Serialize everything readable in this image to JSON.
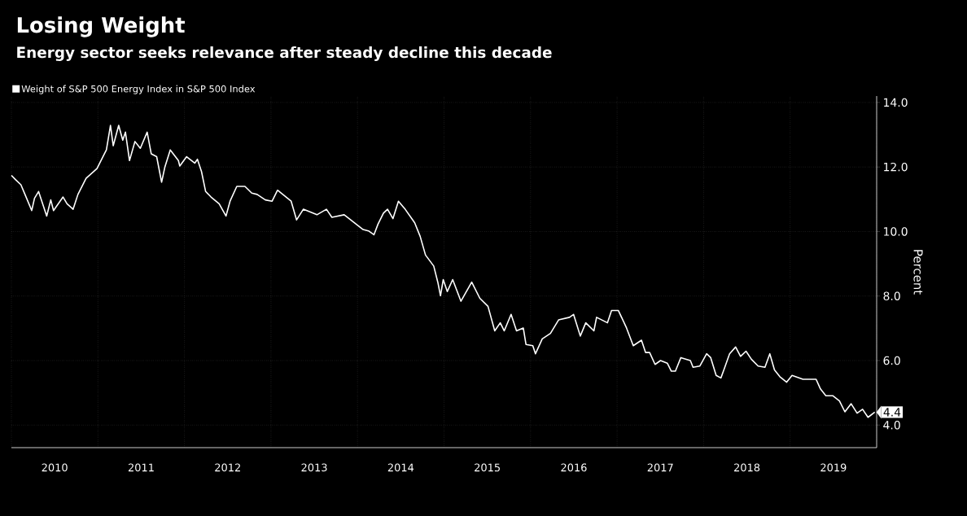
{
  "chart_data": {
    "type": "line",
    "title": "Losing Weight",
    "subtitle": "Energy sector seeks relevance after steady decline this decade",
    "ylabel": "Percent",
    "legend": "top left",
    "grid": true,
    "xlim": [
      2010,
      2020
    ],
    "ylim": [
      3.3,
      14.2
    ],
    "xticks": [
      {
        "value": 2010,
        "label": null
      },
      {
        "value": 2010.5,
        "label": "2010"
      },
      {
        "value": 2011,
        "label": null
      },
      {
        "value": 2011.5,
        "label": "2011"
      },
      {
        "value": 2012,
        "label": null
      },
      {
        "value": 2012.5,
        "label": "2012"
      },
      {
        "value": 2013,
        "label": null
      },
      {
        "value": 2013.5,
        "label": "2013"
      },
      {
        "value": 2014,
        "label": null
      },
      {
        "value": 2014.5,
        "label": "2014"
      },
      {
        "value": 2015,
        "label": null
      },
      {
        "value": 2015.5,
        "label": "2015"
      },
      {
        "value": 2016,
        "label": null
      },
      {
        "value": 2016.5,
        "label": "2016"
      },
      {
        "value": 2017,
        "label": null
      },
      {
        "value": 2017.5,
        "label": "2017"
      },
      {
        "value": 2018,
        "label": null
      },
      {
        "value": 2018.5,
        "label": "2018"
      },
      {
        "value": 2019,
        "label": null
      },
      {
        "value": 2019.5,
        "label": "2019"
      },
      {
        "value": 2020,
        "label": null
      }
    ],
    "yticks": [
      {
        "value": 4,
        "label": "4.0"
      },
      {
        "value": 6,
        "label": "6.0"
      },
      {
        "value": 8,
        "label": "8.0"
      },
      {
        "value": 10,
        "label": "10.0"
      },
      {
        "value": 12,
        "label": "12.0"
      },
      {
        "value": 14,
        "label": "14.0"
      }
    ],
    "annotations": [
      {
        "text": "4.4",
        "x": 2019.978,
        "y": 4.4
      }
    ],
    "series": [
      {
        "name": "Weight of S&P 500 Energy Index in S&P 500 Index",
        "color": "#ffffff",
        "x": [
          2010.0,
          2010.047,
          2010.11,
          2010.157,
          2010.235,
          2010.267,
          2010.314,
          2010.408,
          2010.455,
          2010.487,
          2010.597,
          2010.643,
          2010.713,
          2010.769,
          2010.863,
          2010.989,
          2011.067,
          2011.098,
          2011.145,
          2011.177,
          2011.24,
          2011.287,
          2011.318,
          2011.365,
          2011.428,
          2011.49,
          2011.569,
          2011.616,
          2011.679,
          2011.736,
          2011.773,
          2011.836,
          2011.93,
          2011.946,
          2012.025,
          2012.119,
          2012.15,
          2012.197,
          2012.245,
          2012.307,
          2012.401,
          2012.48,
          2012.527,
          2012.605,
          2012.699,
          2012.778,
          2012.84,
          2012.935,
          2013.013,
          2013.076,
          2013.233,
          2013.296,
          2013.374,
          2013.531,
          2013.641,
          2013.704,
          2013.846,
          2014.002,
          2014.065,
          2014.127,
          2014.19,
          2014.237,
          2014.3,
          2014.347,
          2014.41,
          2014.473,
          2014.551,
          2014.661,
          2014.724,
          2014.786,
          2014.881,
          2014.928,
          2014.959,
          2014.991,
          2015.038,
          2015.1,
          2015.195,
          2015.32,
          2015.414,
          2015.508,
          2015.586,
          2015.65,
          2015.696,
          2015.775,
          2015.838,
          2015.916,
          2015.947,
          2016.026,
          2016.057,
          2016.135,
          2016.23,
          2016.324,
          2016.45,
          2016.497,
          2016.575,
          2016.638,
          2016.732,
          2016.763,
          2016.889,
          2016.936,
          2017.015,
          2017.109,
          2017.187,
          2017.282,
          2017.329,
          2017.376,
          2017.439,
          2017.502,
          2017.58,
          2017.627,
          2017.674,
          2017.737,
          2017.847,
          2017.878,
          2017.957,
          2018.035,
          2018.082,
          2018.145,
          2018.2,
          2018.239,
          2018.3,
          2018.37,
          2018.427,
          2018.49,
          2018.552,
          2018.63,
          2018.709,
          2018.765,
          2018.819,
          2018.881,
          2018.96,
          2019.022,
          2019.148,
          2019.3,
          2019.35,
          2019.413,
          2019.492,
          2019.57,
          2019.633,
          2019.705,
          2019.774,
          2019.837,
          2019.9,
          2019.978
        ],
        "values": [
          11.74,
          11.61,
          11.45,
          11.15,
          10.65,
          11.03,
          11.24,
          10.48,
          10.98,
          10.65,
          11.07,
          10.86,
          10.69,
          11.15,
          11.65,
          11.95,
          12.37,
          12.53,
          13.29,
          12.66,
          13.29,
          12.83,
          13.08,
          12.2,
          12.79,
          12.58,
          13.08,
          12.41,
          12.32,
          11.53,
          11.99,
          12.53,
          12.2,
          12.03,
          12.32,
          12.12,
          12.24,
          11.86,
          11.24,
          11.07,
          10.86,
          10.48,
          10.94,
          11.4,
          11.4,
          11.19,
          11.15,
          10.98,
          10.94,
          11.28,
          10.94,
          10.36,
          10.69,
          10.52,
          10.69,
          10.44,
          10.52,
          10.19,
          10.06,
          10.02,
          9.9,
          10.23,
          10.57,
          10.69,
          10.4,
          10.94,
          10.69,
          10.27,
          9.85,
          9.27,
          8.93,
          8.43,
          8.01,
          8.51,
          8.14,
          8.51,
          7.84,
          8.43,
          7.93,
          7.68,
          6.92,
          7.17,
          6.92,
          7.43,
          6.92,
          7.01,
          6.5,
          6.46,
          6.21,
          6.67,
          6.84,
          7.26,
          7.34,
          7.43,
          6.76,
          7.17,
          6.92,
          7.34,
          7.17,
          7.55,
          7.55,
          7.01,
          6.46,
          6.63,
          6.25,
          6.25,
          5.88,
          6.0,
          5.92,
          5.67,
          5.67,
          6.09,
          6.0,
          5.79,
          5.83,
          6.21,
          6.09,
          5.54,
          5.46,
          5.75,
          6.21,
          6.42,
          6.13,
          6.29,
          6.04,
          5.83,
          5.79,
          6.21,
          5.71,
          5.5,
          5.33,
          5.54,
          5.42,
          5.42,
          5.12,
          4.91,
          4.91,
          4.75,
          4.41,
          4.66,
          4.37,
          4.49,
          4.24,
          4.4
        ]
      }
    ]
  }
}
